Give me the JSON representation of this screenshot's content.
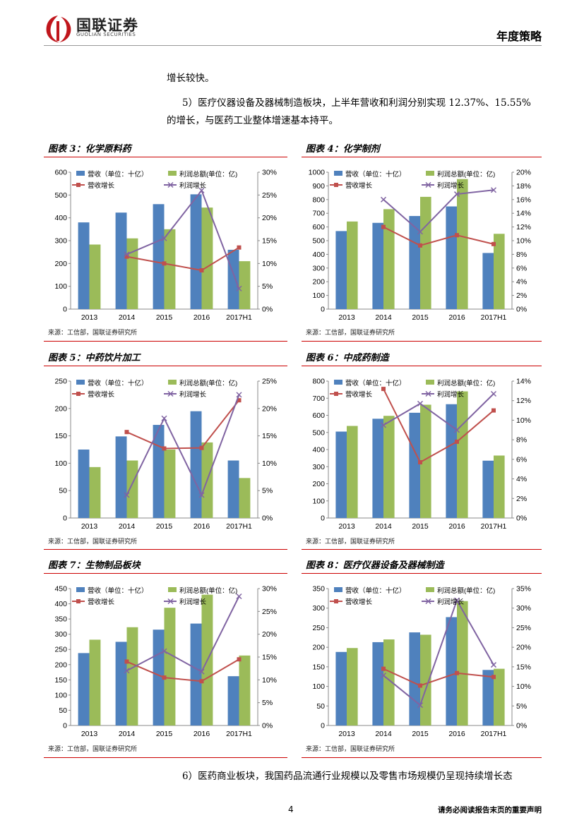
{
  "header": {
    "brand_cn": "国联证券",
    "brand_en": "GUOLIAN SECURITIES",
    "doc_type": "年度策略"
  },
  "body": {
    "line1": "增长较快。",
    "para5_line1": "5）医疗仪器设备及器械制造板块，上半年营收和利润分别实现 12.37%、15.55%",
    "para5_line2": "的增长，与医药工业整体增速基本持平。",
    "para6": "6）医药商业板块，我国药品流通行业规模以及零售市场规模仍呈现持续增长态"
  },
  "footer": {
    "page": "4",
    "note": "请务必阅读报告末页的重要声明"
  },
  "colors": {
    "rev": "#4f81bd",
    "profit": "#9bbb59",
    "revg": "#c0504d",
    "profg": "#8064a2",
    "accent": "#c00000"
  },
  "chart_data": [
    {
      "id": "c3",
      "type": "bar+line",
      "title": "图表 3：化学原料药",
      "source": "来源：工信部，国联证券研究所",
      "categories": [
        "2013",
        "2014",
        "2015",
        "2016",
        "2017H1"
      ],
      "legend": [
        "营收（单位：十亿）",
        "利润总额(单位：亿)",
        "营收增长",
        "利润增长"
      ],
      "ylim": [
        0,
        600
      ],
      "yticks": [
        0,
        100,
        200,
        300,
        400,
        500,
        600
      ],
      "y2lim": [
        0,
        30
      ],
      "y2ticks": [
        0,
        5,
        10,
        15,
        20,
        25,
        30
      ],
      "bars": [
        [
          380,
          423,
          460,
          503,
          260
        ],
        [
          283,
          310,
          350,
          445,
          210
        ]
      ],
      "lines": [
        [
          null,
          11.5,
          10,
          8.5,
          13.5
        ],
        [
          null,
          12,
          15.5,
          26,
          4.5
        ]
      ]
    },
    {
      "id": "c4",
      "type": "bar+line",
      "title": "图表 4：化学制剂",
      "source": "来源：工信部，国联证券研究所",
      "categories": [
        "2013",
        "2014",
        "2015",
        "2016",
        "2017H1"
      ],
      "legend": [
        "营收（单位：十亿）",
        "利润总额(单位：亿)",
        "营收增长",
        "利润增长"
      ],
      "ylim": [
        0,
        1000
      ],
      "yticks": [
        0,
        100,
        200,
        300,
        400,
        500,
        600,
        700,
        800,
        900,
        1000
      ],
      "y2lim": [
        0,
        20
      ],
      "y2ticks": [
        0,
        2,
        4,
        6,
        8,
        10,
        12,
        14,
        16,
        18,
        20
      ],
      "bars": [
        [
          570,
          630,
          680,
          750,
          410
        ],
        [
          640,
          730,
          820,
          950,
          550
        ]
      ],
      "lines": [
        [
          null,
          12,
          9.3,
          10.8,
          9.5
        ],
        [
          null,
          16,
          11.3,
          16.8,
          17.4
        ]
      ]
    },
    {
      "id": "c5",
      "type": "bar+line",
      "title": "图表 5：中药饮片加工",
      "source": "来源：工信部，国联证券研究所",
      "categories": [
        "2013",
        "2014",
        "2015",
        "2016",
        "2017H1"
      ],
      "legend": [
        "营收（单位：十亿）",
        "利润总额(单位：亿)",
        "营收增长",
        "利润增长"
      ],
      "ylim": [
        0,
        250
      ],
      "yticks": [
        0,
        50,
        100,
        150,
        200,
        250
      ],
      "y2lim": [
        0,
        25
      ],
      "y2ticks": [
        0,
        5,
        10,
        15,
        20,
        25
      ],
      "bars": [
        [
          125,
          149,
          170,
          195,
          105
        ],
        [
          93,
          105,
          125,
          138,
          73
        ]
      ],
      "lines": [
        [
          null,
          15.7,
          12.7,
          12.8,
          21.5
        ],
        [
          null,
          4.2,
          18.2,
          4.2,
          22.5
        ]
      ]
    },
    {
      "id": "c6",
      "type": "bar+line",
      "title": "图表 6：中成药制造",
      "source": "来源：工信部，国联证券研究所",
      "categories": [
        "2013",
        "2014",
        "2015",
        "2016",
        "2017H1"
      ],
      "legend": [
        "营收（单位：十亿）",
        "利润总额(单位：亿)",
        "营收增长",
        "利润增长"
      ],
      "ylim": [
        0,
        800
      ],
      "yticks": [
        0,
        100,
        200,
        300,
        400,
        500,
        600,
        700,
        800
      ],
      "y2lim": [
        0,
        14
      ],
      "y2ticks": [
        0,
        2,
        4,
        6,
        8,
        10,
        12,
        14
      ],
      "bars": [
        [
          505,
          580,
          615,
          665,
          335
        ],
        [
          538,
          597,
          662,
          740,
          365
        ]
      ],
      "lines": [
        [
          null,
          13.2,
          5.7,
          7.8,
          11
        ],
        [
          null,
          9.5,
          11.7,
          9,
          12.7
        ]
      ]
    },
    {
      "id": "c7",
      "type": "bar+line",
      "title": "图表 7：生物制品板块",
      "source": "来源：工信部，国联证券研究所",
      "categories": [
        "2013",
        "2014",
        "2015",
        "2016",
        "2017H1"
      ],
      "legend": [
        "营收（单位：十亿）",
        "利润总额(单位：亿)",
        "营收增长",
        "利润增长"
      ],
      "ylim": [
        0,
        450
      ],
      "yticks": [
        0,
        50,
        100,
        150,
        200,
        250,
        300,
        350,
        400,
        450
      ],
      "y2lim": [
        0,
        30
      ],
      "y2ticks": [
        0,
        5,
        10,
        15,
        20,
        25,
        30
      ],
      "bars": [
        [
          238,
          275,
          315,
          335,
          162
        ],
        [
          282,
          323,
          387,
          430,
          230
        ]
      ],
      "lines": [
        [
          null,
          14,
          10.5,
          9.7,
          14.5
        ],
        [
          null,
          12,
          16.3,
          11.8,
          28.3
        ]
      ]
    },
    {
      "id": "c8",
      "type": "bar+line",
      "title": "图表 8：医疗仪器设备及器械制造",
      "source": "来源：工信部，国联证券研究所",
      "categories": [
        "2013",
        "2014",
        "2015",
        "2016",
        "2017H1"
      ],
      "legend": [
        "营收（单位：十亿）",
        "利润总额(单位：亿)",
        "营收增长",
        "利润增长"
      ],
      "ylim": [
        0,
        350
      ],
      "yticks": [
        0,
        50,
        100,
        150,
        200,
        250,
        300,
        350
      ],
      "y2lim": [
        0,
        35
      ],
      "y2ticks": [
        0,
        5,
        10,
        15,
        20,
        25,
        30,
        35
      ],
      "bars": [
        [
          188,
          213,
          238,
          277,
          142
        ],
        [
          198,
          220,
          232,
          318,
          145
        ]
      ],
      "lines": [
        [
          null,
          14.5,
          10.2,
          13.4,
          12.4
        ],
        [
          null,
          12.8,
          5.2,
          32,
          15.5
        ]
      ]
    }
  ]
}
